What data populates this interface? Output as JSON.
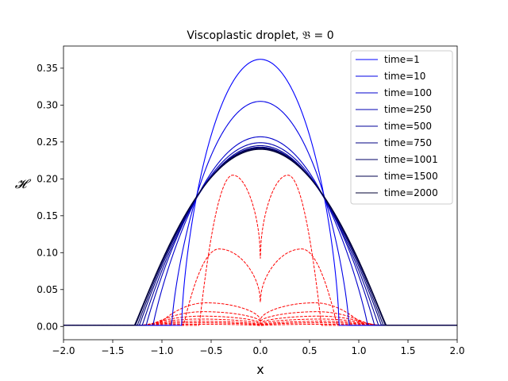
{
  "chart_data": {
    "type": "line",
    "title": "Viscoplastic droplet, 𝔅 = 0",
    "xlabel": "x",
    "ylabel": "𝓗",
    "xlim": [
      -2.0,
      2.0
    ],
    "ylim": [
      -0.018,
      0.38
    ],
    "xticks": [
      "−2.0",
      "−1.5",
      "−1.0",
      "−0.5",
      "0.0",
      "0.5",
      "1.0",
      "1.5",
      "2.0"
    ],
    "xtick_values": [
      -2.0,
      -1.5,
      -1.0,
      -0.5,
      0.0,
      0.5,
      1.0,
      1.5,
      2.0
    ],
    "yticks": [
      "0.00",
      "0.05",
      "0.10",
      "0.15",
      "0.20",
      "0.25",
      "0.30",
      "0.35"
    ],
    "ytick_values": [
      0.0,
      0.05,
      0.1,
      0.15,
      0.2,
      0.25,
      0.3,
      0.35
    ],
    "grid": false,
    "legend_position": "top-right",
    "height_series": [
      {
        "name": "time=1",
        "color": "#0000ff",
        "peak": 0.362,
        "edge": 0.8,
        "shape": 0.68
      },
      {
        "name": "time=10",
        "color": "#0000e6",
        "peak": 0.305,
        "edge": 0.9,
        "shape": 0.75
      },
      {
        "name": "time=100",
        "color": "#0000cc",
        "peak": 0.257,
        "edge": 1.09,
        "shape": 0.9
      },
      {
        "name": "time=250",
        "color": "#0000b3",
        "peak": 0.249,
        "edge": 1.16,
        "shape": 0.96
      },
      {
        "name": "time=500",
        "color": "#000099",
        "peak": 0.245,
        "edge": 1.2,
        "shape": 1.0
      },
      {
        "name": "time=750",
        "color": "#000080",
        "peak": 0.243,
        "edge": 1.23,
        "shape": 1.02
      },
      {
        "name": "time=1001",
        "color": "#000066",
        "peak": 0.242,
        "edge": 1.25,
        "shape": 1.03
      },
      {
        "name": "time=1500",
        "color": "#00004d",
        "peak": 0.241,
        "edge": 1.27,
        "shape": 1.05
      },
      {
        "name": "time=2000",
        "color": "#000033",
        "peak": 0.24,
        "edge": 1.28,
        "shape": 1.06
      }
    ],
    "yield_surfaces": [
      {
        "color": "#ff0000",
        "peak": 0.205,
        "peak_x": 0.28,
        "center": 0.092,
        "edge": 0.62
      },
      {
        "color": "#ff0000",
        "peak": 0.105,
        "peak_x": 0.42,
        "center": 0.033,
        "edge": 0.78
      },
      {
        "color": "#ff0000",
        "peak": 0.032,
        "peak_x": 0.55,
        "center": 0.008,
        "edge": 1.05
      },
      {
        "color": "#ff0000",
        "peak": 0.02,
        "peak_x": 0.58,
        "center": 0.006,
        "edge": 1.12
      },
      {
        "color": "#ff0000",
        "peak": 0.014,
        "peak_x": 0.6,
        "center": 0.004,
        "edge": 1.16
      },
      {
        "color": "#ff0000",
        "peak": 0.01,
        "peak_x": 0.62,
        "center": 0.003,
        "edge": 1.19
      },
      {
        "color": "#ff0000",
        "peak": 0.007,
        "peak_x": 0.64,
        "center": 0.002,
        "edge": 1.21
      },
      {
        "color": "#ff0000",
        "peak": 0.005,
        "peak_x": 0.65,
        "center": 0.0015,
        "edge": 1.23
      },
      {
        "color": "#ff0000",
        "peak": 0.003,
        "peak_x": 0.66,
        "center": 0.001,
        "edge": 1.25
      }
    ],
    "precursor_film": 0.0015
  }
}
